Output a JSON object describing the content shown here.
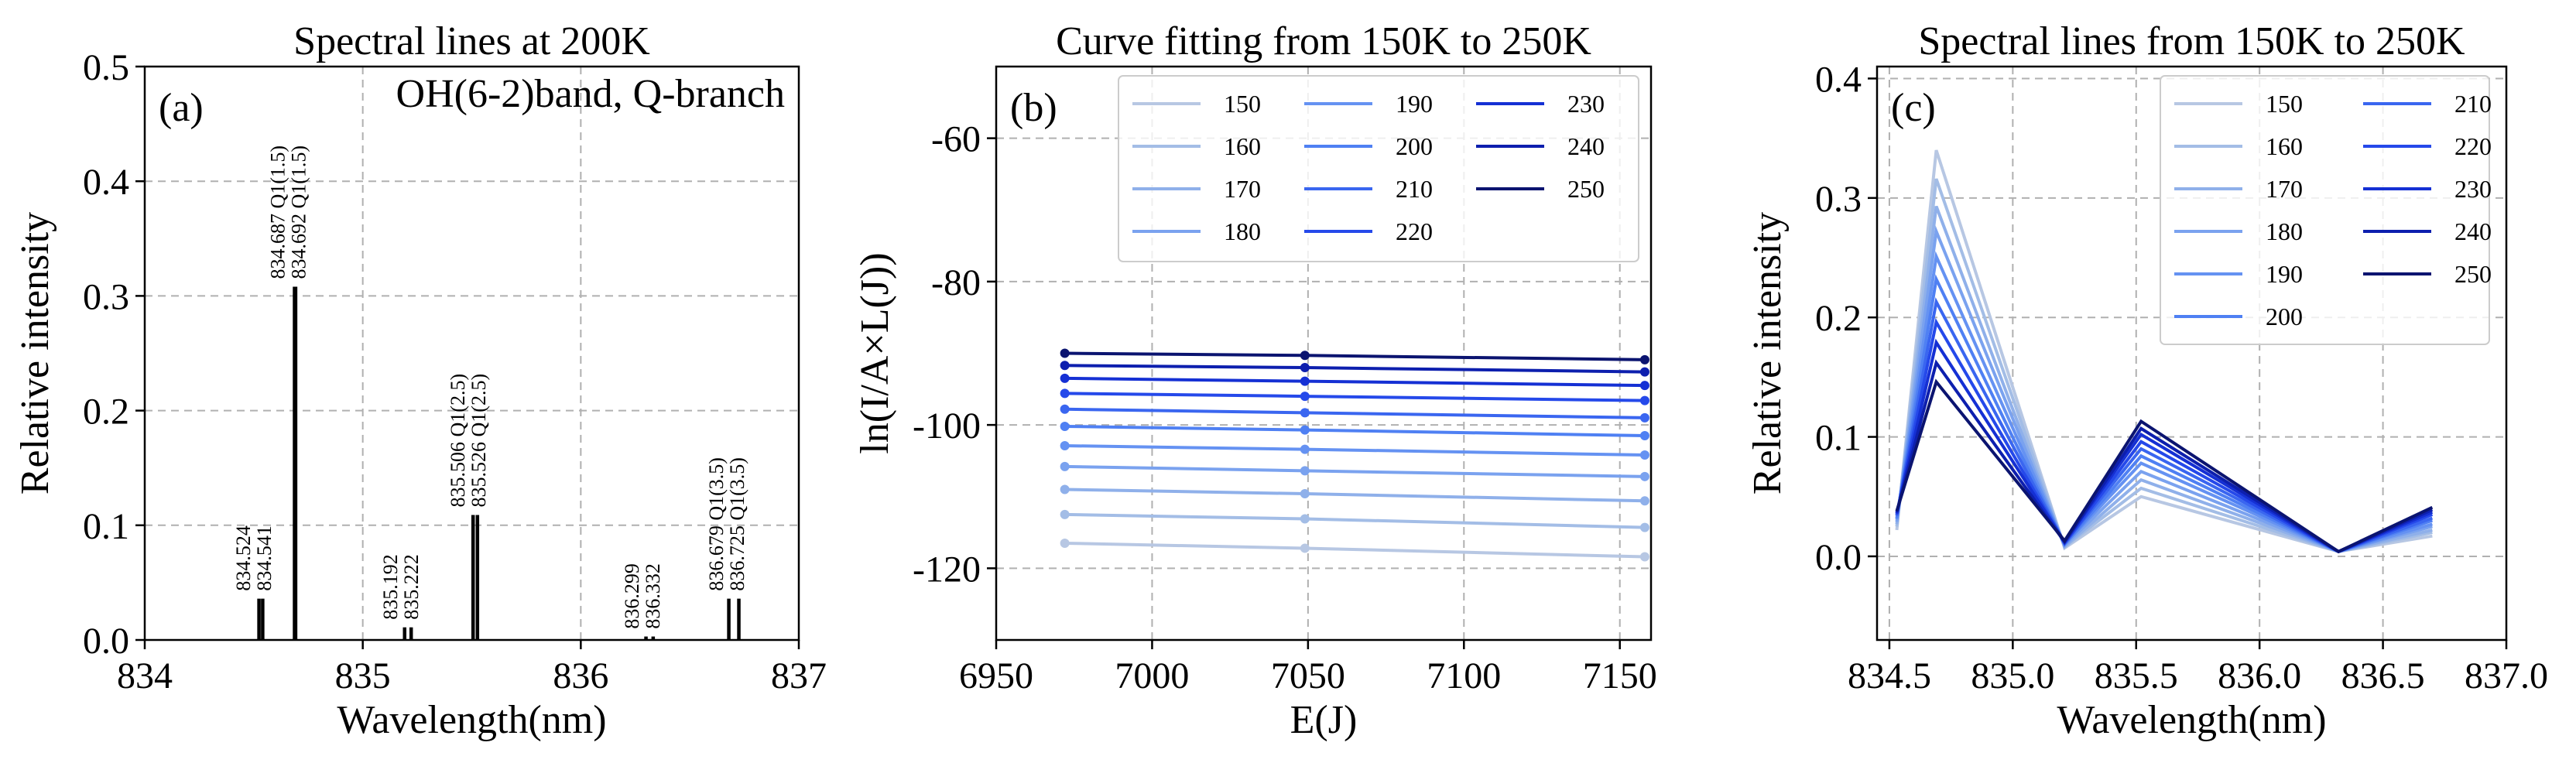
{
  "chart_data": [
    {
      "id": "a",
      "type": "bar",
      "title": "Spectral lines at 200K",
      "panel_label": "(a)",
      "annotation": "OH(6-2)band, Q-branch",
      "xlabel": "Wavelength(nm)",
      "ylabel": "Relative intensity",
      "xlim": [
        834,
        837
      ],
      "ylim": [
        0,
        0.5
      ],
      "xticks": [
        834,
        835,
        836,
        837
      ],
      "xtick_labels": [
        "834",
        "835",
        "836",
        "837"
      ],
      "yticks": [
        0.0,
        0.1,
        0.2,
        0.3,
        0.4,
        0.5
      ],
      "ytick_labels": [
        "0.0",
        "0.1",
        "0.2",
        "0.3",
        "0.4",
        "0.5"
      ],
      "grid": true,
      "bar_color": "#000000",
      "lines": [
        {
          "x": 834.524,
          "y": 0.036
        },
        {
          "x": 834.541,
          "y": 0.036
        },
        {
          "x": 834.687,
          "y": 0.308
        },
        {
          "x": 834.692,
          "y": 0.308
        },
        {
          "x": 835.192,
          "y": 0.011
        },
        {
          "x": 835.222,
          "y": 0.011
        },
        {
          "x": 835.506,
          "y": 0.109
        },
        {
          "x": 835.526,
          "y": 0.109
        },
        {
          "x": 836.299,
          "y": 0.003
        },
        {
          "x": 836.332,
          "y": 0.003
        },
        {
          "x": 836.679,
          "y": 0.036
        },
        {
          "x": 836.725,
          "y": 0.036
        }
      ],
      "peak_labels": [
        {
          "x": 834.532,
          "top": 0.036,
          "lines": [
            "834.524",
            "834.541"
          ]
        },
        {
          "x": 834.69,
          "top": 0.308,
          "lines": [
            "834.687 Q1(1.5)",
            "834.692 Q1(1.5)"
          ]
        },
        {
          "x": 835.207,
          "top": 0.011,
          "lines": [
            "835.192",
            "835.222"
          ]
        },
        {
          "x": 835.516,
          "top": 0.109,
          "lines": [
            "835.506 Q1(2.5)",
            "835.526 Q1(2.5)"
          ]
        },
        {
          "x": 836.315,
          "top": 0.003,
          "lines": [
            "836.299",
            "836.332"
          ]
        },
        {
          "x": 836.702,
          "top": 0.036,
          "lines": [
            "836.679 Q1(3.5)",
            "836.725 Q1(3.5)"
          ]
        }
      ]
    },
    {
      "id": "b",
      "type": "line",
      "title": "Curve fitting from 150K to 250K",
      "panel_label": "(b)",
      "xlabel": "E(J)",
      "ylabel": "ln(I/A×L(J))",
      "xlim": [
        6950,
        7160
      ],
      "ylim": [
        -130,
        -50
      ],
      "xticks": [
        6950,
        7000,
        7050,
        7100,
        7150
      ],
      "xtick_labels": [
        "6950",
        "7000",
        "7050",
        "7100",
        "7150"
      ],
      "yticks": [
        -120,
        -100,
        -80,
        -60
      ],
      "ytick_labels": [
        "-120",
        "-100",
        "-80",
        "-60"
      ],
      "grid": true,
      "legend_position": "top-right",
      "legend_columns": 3,
      "x": [
        6972,
        7049,
        7158
      ],
      "series": [
        {
          "name": "150",
          "color": "#b7c7e3",
          "values": [
            -116.5,
            -117.2,
            -118.4
          ]
        },
        {
          "name": "160",
          "color": "#a3bde6",
          "values": [
            -112.5,
            -113.1,
            -114.3
          ]
        },
        {
          "name": "170",
          "color": "#8fb0ea",
          "values": [
            -109.0,
            -109.6,
            -110.6
          ]
        },
        {
          "name": "180",
          "color": "#7aa2ef",
          "values": [
            -105.8,
            -106.4,
            -107.2
          ]
        },
        {
          "name": "190",
          "color": "#6592f2",
          "values": [
            -102.9,
            -103.4,
            -104.2
          ]
        },
        {
          "name": "200",
          "color": "#4f80f3",
          "values": [
            -100.2,
            -100.7,
            -101.5
          ]
        },
        {
          "name": "210",
          "color": "#3a66f0",
          "values": [
            -97.8,
            -98.3,
            -99.0
          ]
        },
        {
          "name": "220",
          "color": "#2549ea",
          "values": [
            -95.6,
            -96.0,
            -96.6
          ]
        },
        {
          "name": "230",
          "color": "#1530d4",
          "values": [
            -93.5,
            -93.9,
            -94.5
          ]
        },
        {
          "name": "240",
          "color": "#0d1fae",
          "values": [
            -91.7,
            -92.0,
            -92.6
          ]
        },
        {
          "name": "250",
          "color": "#0b1470",
          "values": [
            -90.0,
            -90.3,
            -90.9
          ]
        }
      ]
    },
    {
      "id": "c",
      "type": "line",
      "title": "Spectral lines from 150K to 250K",
      "panel_label": "(c)",
      "xlabel": "Wavelength(nm)",
      "ylabel": "Relative intensity",
      "xlim": [
        834.45,
        837.0
      ],
      "ylim": [
        -0.07,
        0.41
      ],
      "xticks": [
        834.5,
        835.0,
        835.5,
        836.0,
        836.5,
        837.0
      ],
      "xtick_labels": [
        "834.5",
        "835.0",
        "835.5",
        "836.0",
        "836.5",
        "837.0"
      ],
      "yticks": [
        0.0,
        0.1,
        0.2,
        0.3,
        0.4
      ],
      "ytick_labels": [
        "0.0",
        "0.1",
        "0.2",
        "0.3",
        "0.4"
      ],
      "grid": true,
      "legend_position": "top-right",
      "legend_columns": 2,
      "x": [
        834.53,
        834.69,
        835.21,
        835.52,
        836.32,
        836.7
      ],
      "series": [
        {
          "name": "150",
          "color": "#b7c7e3",
          "values": [
            0.022,
            0.34,
            0.007,
            0.05,
            0.004,
            0.017
          ]
        },
        {
          "name": "160",
          "color": "#a3bde6",
          "values": [
            0.025,
            0.316,
            0.008,
            0.057,
            0.004,
            0.02
          ]
        },
        {
          "name": "170",
          "color": "#8fb0ea",
          "values": [
            0.027,
            0.293,
            0.008,
            0.064,
            0.004,
            0.022
          ]
        },
        {
          "name": "180",
          "color": "#7aa2ef",
          "values": [
            0.029,
            0.272,
            0.009,
            0.071,
            0.004,
            0.025
          ]
        },
        {
          "name": "190",
          "color": "#6592f2",
          "values": [
            0.031,
            0.251,
            0.01,
            0.078,
            0.004,
            0.027
          ]
        },
        {
          "name": "200",
          "color": "#4f80f3",
          "values": [
            0.032,
            0.232,
            0.01,
            0.084,
            0.004,
            0.03
          ]
        },
        {
          "name": "210",
          "color": "#3a66f0",
          "values": [
            0.034,
            0.213,
            0.011,
            0.09,
            0.004,
            0.032
          ]
        },
        {
          "name": "220",
          "color": "#2549ea",
          "values": [
            0.035,
            0.196,
            0.011,
            0.096,
            0.004,
            0.035
          ]
        },
        {
          "name": "230",
          "color": "#1530d4",
          "values": [
            0.036,
            0.179,
            0.012,
            0.102,
            0.004,
            0.037
          ]
        },
        {
          "name": "240",
          "color": "#0d1fae",
          "values": [
            0.037,
            0.162,
            0.012,
            0.107,
            0.004,
            0.039
          ]
        },
        {
          "name": "250",
          "color": "#0b1470",
          "values": [
            0.038,
            0.146,
            0.013,
            0.113,
            0.004,
            0.041
          ]
        }
      ]
    }
  ]
}
